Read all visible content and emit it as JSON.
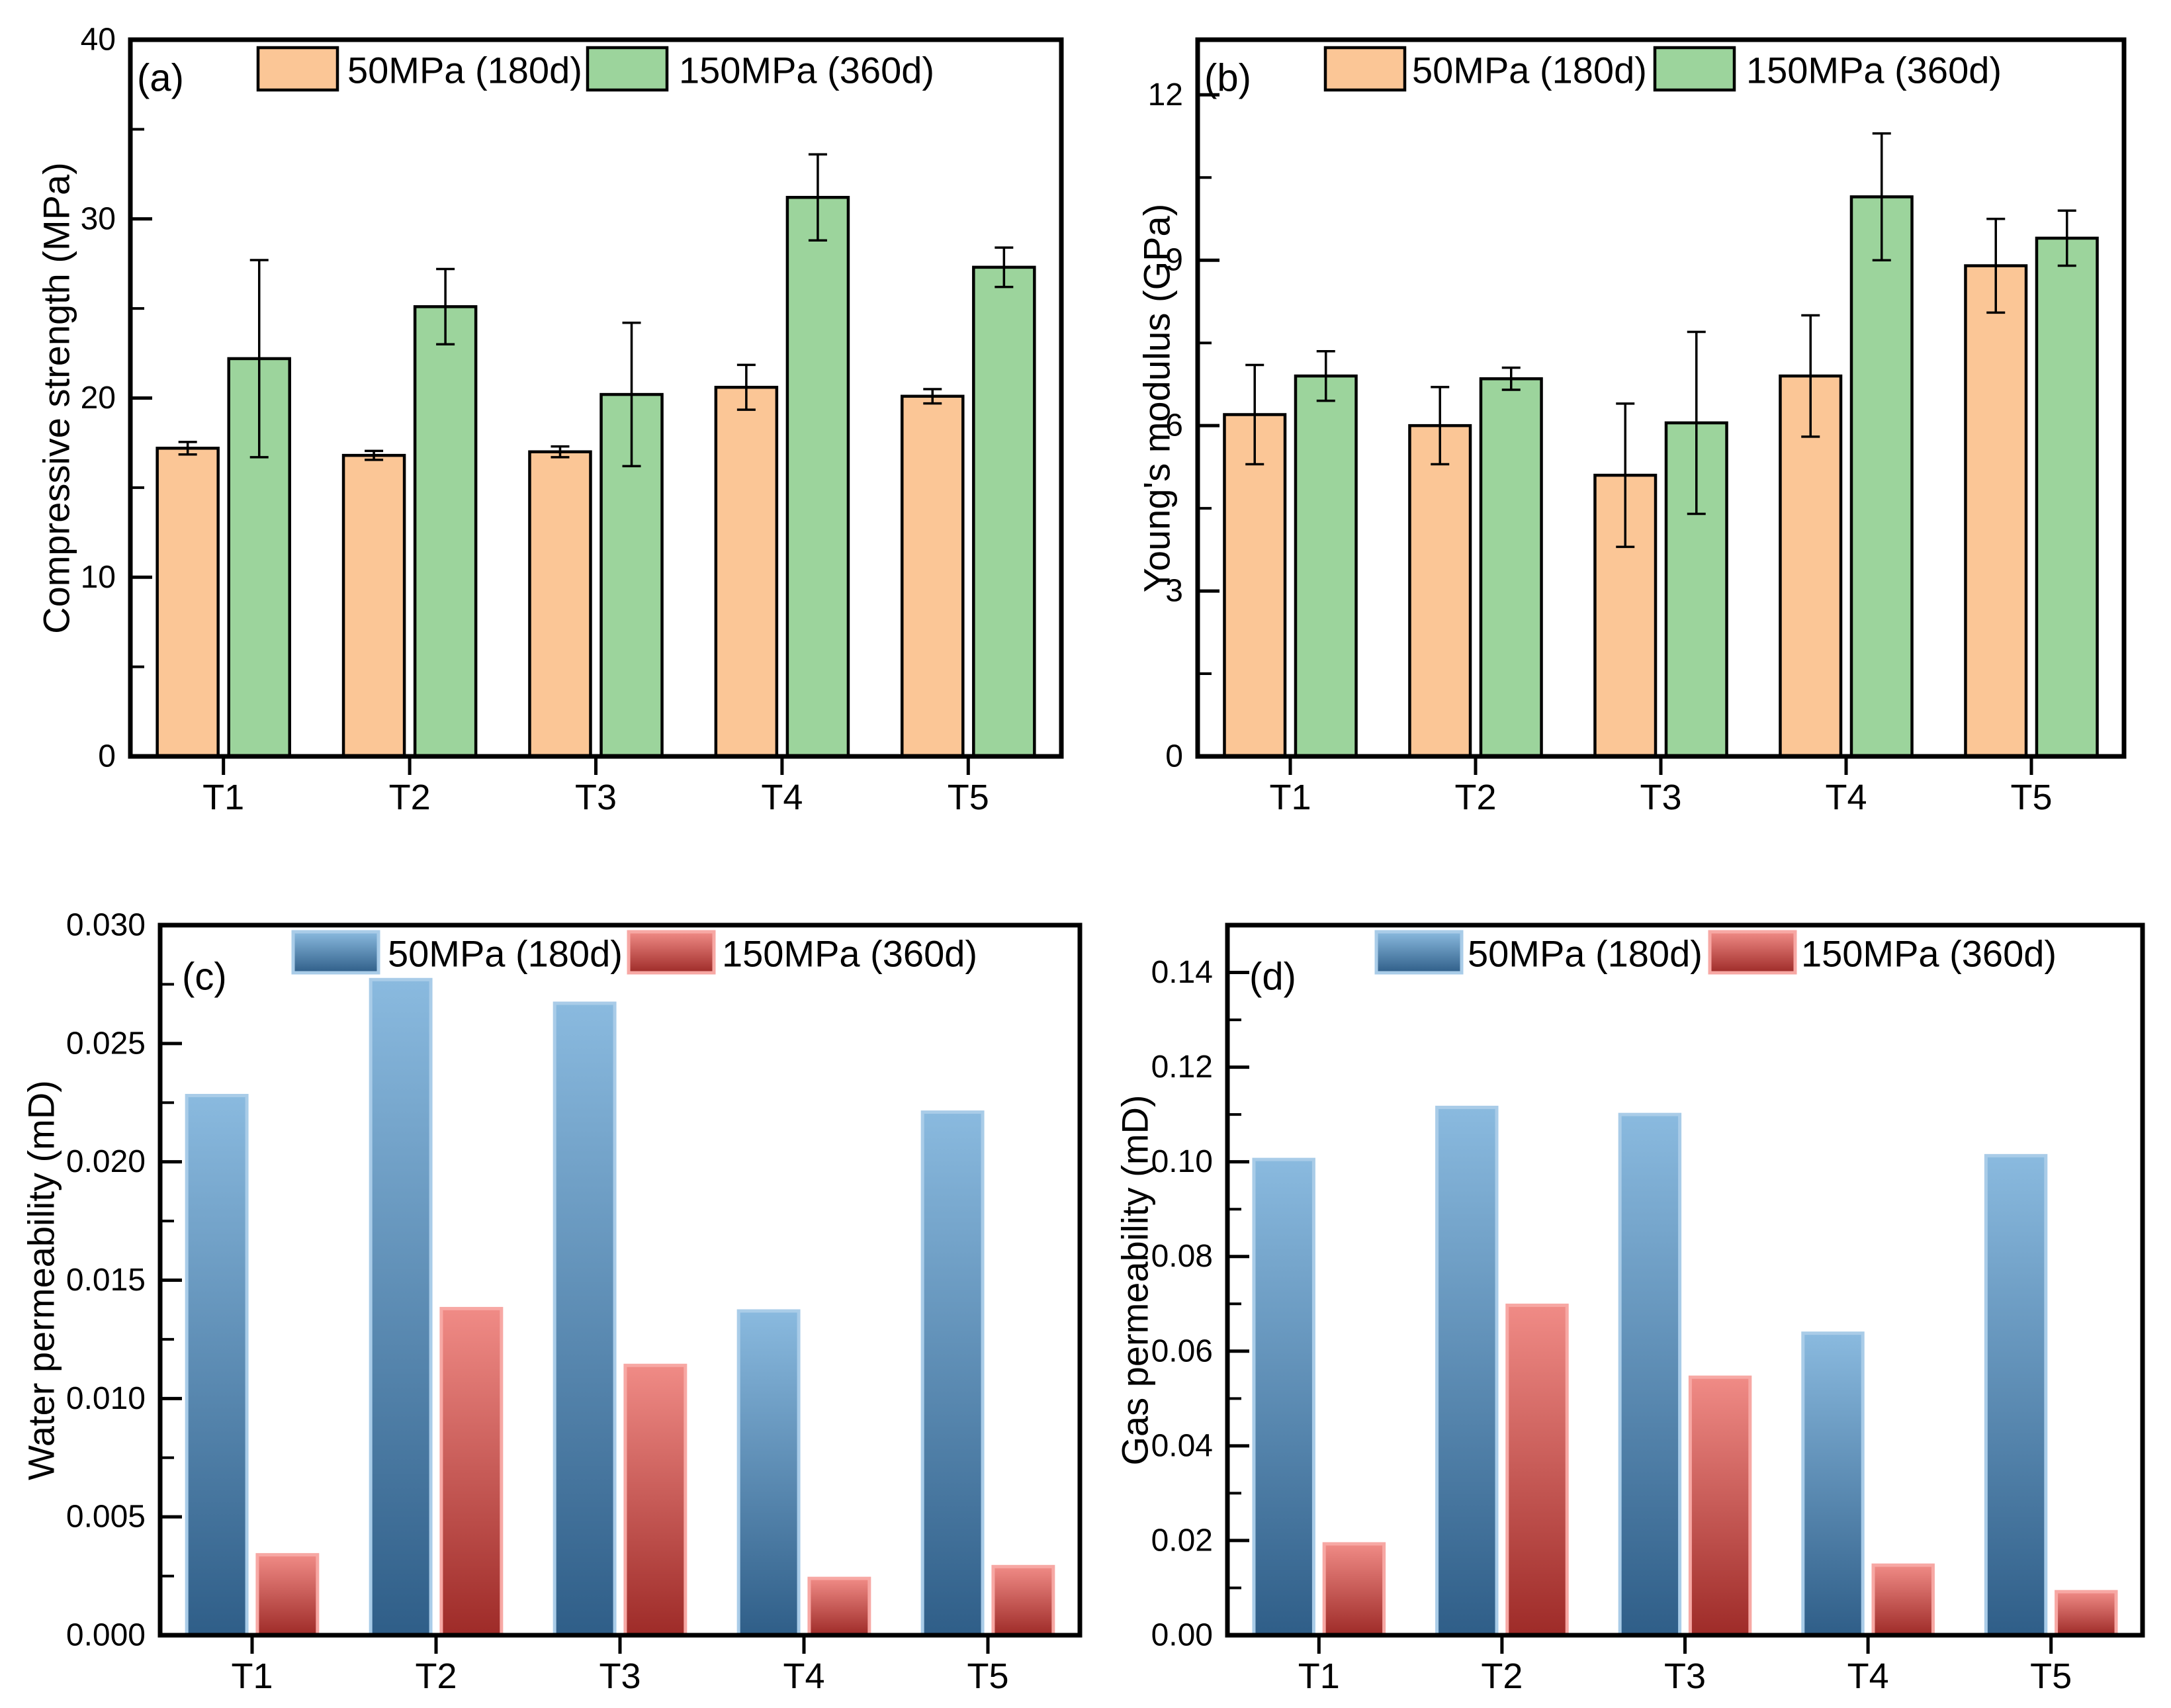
{
  "figure": {
    "background": "#ffffff",
    "categories": [
      "T1",
      "T2",
      "T3",
      "T4",
      "T5"
    ],
    "colors": {
      "axis": "#000000",
      "text": "#000000",
      "orange_fill": "#FBC696",
      "green_fill": "#9CD49C",
      "bar_outline": "#000000",
      "blue_top": "#8ABADF",
      "blue_bottom": "#2F5E88",
      "blue_edge": "#A9CCE8",
      "red_top": "#F08B86",
      "red_bottom": "#9E2B28",
      "red_edge": "#F7A8A4"
    }
  },
  "chart_data": [
    {
      "panel": "(a)",
      "type": "bar",
      "ylabel": "Compressive strength (MPa)",
      "ylim": [
        0,
        40
      ],
      "ytick_step": 10,
      "minor_step": 5,
      "ydecimals": 0,
      "grid": false,
      "legend_position": "top-inside",
      "categories": [
        "T1",
        "T2",
        "T3",
        "T4",
        "T5"
      ],
      "series": [
        {
          "name": "50MPa (180d)",
          "style": "orange",
          "values": [
            17.2,
            16.8,
            17.0,
            20.6,
            20.1
          ],
          "errors": [
            0.35,
            0.25,
            0.3,
            1.25,
            0.4
          ]
        },
        {
          "name": "150MPa (360d)",
          "style": "green",
          "values": [
            22.2,
            25.1,
            20.2,
            31.2,
            27.3
          ],
          "errors": [
            5.5,
            2.1,
            4.0,
            2.4,
            1.1
          ]
        }
      ]
    },
    {
      "panel": "(b)",
      "type": "bar",
      "ylabel": "Young's modulus (GPa)",
      "ylim": [
        0,
        13
      ],
      "ytick_step": 3,
      "minor_step": 1.5,
      "ydecimals": 0,
      "grid": false,
      "legend_position": "top-inside",
      "categories": [
        "T1",
        "T2",
        "T3",
        "T4",
        "T5"
      ],
      "series": [
        {
          "name": "50MPa (180d)",
          "style": "orange",
          "values": [
            6.2,
            6.0,
            5.1,
            6.9,
            8.9
          ],
          "errors": [
            0.9,
            0.7,
            1.3,
            1.1,
            0.85
          ]
        },
        {
          "name": "150MPa (360d)",
          "style": "green",
          "values": [
            6.9,
            6.85,
            6.05,
            10.15,
            9.4
          ],
          "errors": [
            0.45,
            0.2,
            1.65,
            1.15,
            0.5
          ]
        }
      ]
    },
    {
      "panel": "(c)",
      "type": "bar",
      "ylabel": "Water permeability (mD)",
      "ylim": [
        0,
        0.03
      ],
      "ytick_step": 0.005,
      "minor_step": 0.0025,
      "ydecimals": 3,
      "grid": false,
      "legend_position": "top-inside",
      "categories": [
        "T1",
        "T2",
        "T3",
        "T4",
        "T5"
      ],
      "series": [
        {
          "name": "50MPa (180d)",
          "style": "blue-grad",
          "values": [
            0.0228,
            0.0277,
            0.0267,
            0.0137,
            0.0221
          ],
          "errors": null
        },
        {
          "name": "150MPa (360d)",
          "style": "red-grad",
          "values": [
            0.0034,
            0.0138,
            0.0114,
            0.0024,
            0.0029
          ],
          "errors": null
        }
      ]
    },
    {
      "panel": "(d)",
      "type": "bar",
      "ylabel": "Gas permeability (mD)",
      "ylim": [
        0,
        0.15
      ],
      "ytick_step": 0.02,
      "minor_step": 0.01,
      "ydecimals": 2,
      "grid": false,
      "legend_position": "top-inside",
      "categories": [
        "T1",
        "T2",
        "T3",
        "T4",
        "T5"
      ],
      "series": [
        {
          "name": "50MPa (180d)",
          "style": "blue-grad",
          "values": [
            0.1005,
            0.1115,
            0.11,
            0.0638,
            0.1013
          ],
          "errors": null
        },
        {
          "name": "150MPa (360d)",
          "style": "red-grad",
          "values": [
            0.0193,
            0.0697,
            0.0545,
            0.0148,
            0.0092
          ],
          "errors": null
        }
      ]
    }
  ]
}
